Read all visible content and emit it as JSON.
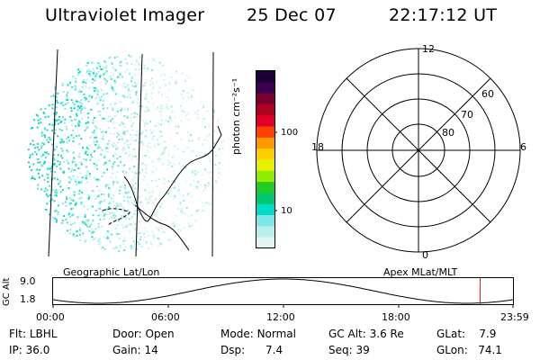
{
  "header": {
    "title": "Ultraviolet Imager",
    "date": "25 Dec 07",
    "time": "22:17:12 UT"
  },
  "colorbar": {
    "unit_label": "photon cm⁻²s⁻¹",
    "ticks": [
      "100",
      "10"
    ],
    "colors": [
      "#1a0033",
      "#3b0050",
      "#7a0030",
      "#b00020",
      "#e0002a",
      "#ff4000",
      "#ff9900",
      "#ffd000",
      "#e8f000",
      "#90ee00",
      "#22cc22",
      "#00c870",
      "#00dcc8",
      "#7ee8e8",
      "#b9f0ee",
      "#e3f5f3"
    ]
  },
  "polar": {
    "labels": {
      "top": "12",
      "bottom": "0",
      "left": "18",
      "right": "6"
    },
    "rings": [
      "60",
      "70",
      "80"
    ]
  },
  "timeline": {
    "left_label": "Geographic Lat/Lon",
    "right_label": "Apex MLat/MLT",
    "y_axis_label": "GC Alt",
    "y_ticks": [
      "9.0",
      "1.8"
    ],
    "x_ticks": [
      "00:00",
      "06:00",
      "12:00",
      "18:00",
      "23:59"
    ],
    "marker_time_fraction": 0.9286,
    "marker_color": "#e02020"
  },
  "info": {
    "row1": [
      {
        "key": "Flt:",
        "value": "LBHL"
      },
      {
        "key": "Door:",
        "value": "Open"
      },
      {
        "key": "Mode:",
        "value": "Normal"
      },
      {
        "key": "GC Alt:",
        "value": "3.6 Re"
      },
      {
        "key": "GLat:",
        "value": "7.9"
      }
    ],
    "row2": [
      {
        "key": "IP:",
        "value": "36.0"
      },
      {
        "key": "Gain:",
        "value": "14"
      },
      {
        "key": "Dsp:",
        "value": "7.4"
      },
      {
        "key": "Seq:",
        "value": "39"
      },
      {
        "key": "GLon:",
        "value": "74.1"
      }
    ]
  }
}
